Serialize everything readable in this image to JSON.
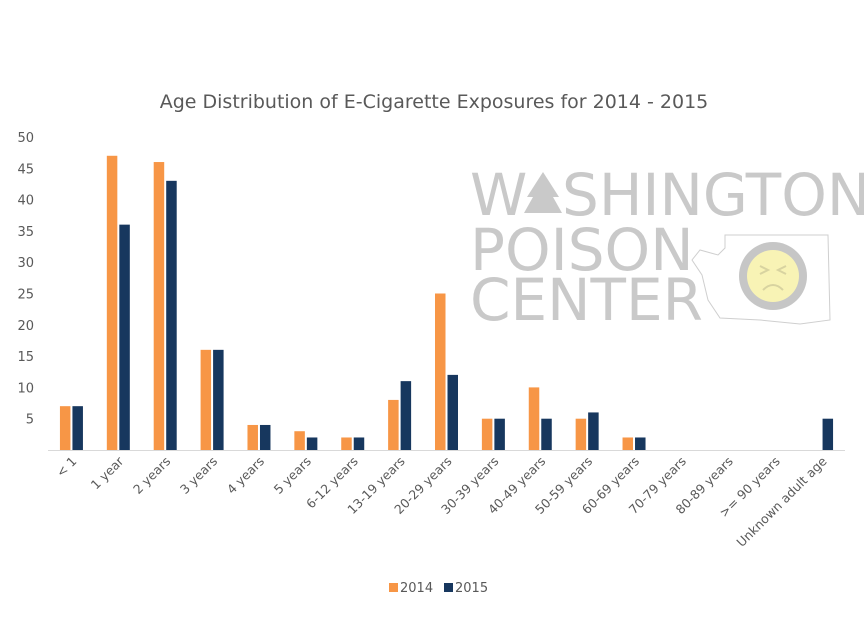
{
  "chart_data": {
    "type": "bar",
    "title": "Age Distribution of E-Cigarette Exposures for 2014 - 2015",
    "xlabel": "",
    "ylabel": "",
    "ylim": [
      0,
      50
    ],
    "yticks": [
      5,
      10,
      15,
      20,
      25,
      30,
      35,
      40,
      45,
      50
    ],
    "grid": false,
    "legend_position": "bottom",
    "categories": [
      "< 1",
      "1 year",
      "2 years",
      "3 years",
      "4 years",
      "5 years",
      "6-12 years",
      "13-19 years",
      "20-29 years",
      "30-39 years",
      "40-49 years",
      "50-59 years",
      "60-69 years",
      "70-79 years",
      "80-89 years",
      ">= 90 years",
      "Unknown adult age"
    ],
    "series": [
      {
        "name": "2014",
        "color": "#F79646",
        "values": [
          7,
          47,
          46,
          16,
          4,
          3,
          2,
          8,
          25,
          5,
          10,
          5,
          2,
          0,
          0,
          0,
          0
        ]
      },
      {
        "name": "2015",
        "color": "#17375E",
        "values": [
          7,
          36,
          43,
          16,
          4,
          2,
          2,
          11,
          12,
          5,
          5,
          6,
          2,
          0,
          0,
          0,
          5
        ]
      }
    ]
  },
  "watermark": {
    "line1": "WASHINGTON",
    "line2": "POISON",
    "line3": "CENTER",
    "icon": "tree-icon",
    "map_icon": "washington-state-map-icon",
    "face_icon": "mr-yuk-face-icon"
  }
}
